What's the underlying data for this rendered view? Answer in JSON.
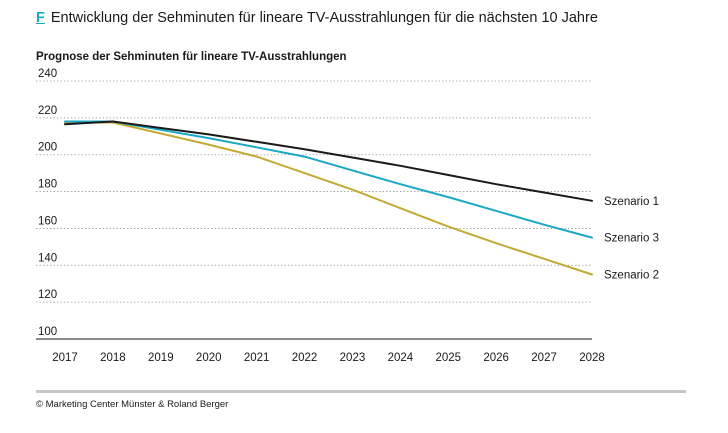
{
  "header": {
    "figure_letter": "F",
    "title": "Entwicklung der Sehminuten für lineare TV-Ausstrahlungen für die nächsten 10 Jahre"
  },
  "footer": {
    "source": "© Marketing Center Münster & Roland Berger"
  },
  "chart_data": {
    "type": "line",
    "title": "Prognose der Sehminuten für lineare TV-Ausstrahlungen",
    "xlabel": "",
    "ylabel": "",
    "x": [
      2017,
      2018,
      2019,
      2020,
      2021,
      2022,
      2023,
      2024,
      2025,
      2026,
      2027,
      2028
    ],
    "x_tick_labels": [
      "2017",
      "2018",
      "2019",
      "2020",
      "2021",
      "2022",
      "2023",
      "2024",
      "2025",
      "2026",
      "2027",
      "2028"
    ],
    "ylim": [
      100,
      240
    ],
    "y_ticks": [
      100,
      120,
      140,
      160,
      180,
      200,
      220,
      240
    ],
    "y_tick_labels": [
      "100",
      "120",
      "140",
      "160",
      "180",
      "200",
      "220",
      "240"
    ],
    "grid": "horizontal-dotted",
    "series": [
      {
        "name": "Szenario 1",
        "color": "#1a1a1a",
        "values": [
          216.5,
          218,
          214.5,
          211,
          207,
          203,
          198.5,
          194,
          189,
          184,
          179.5,
          175
        ]
      },
      {
        "name": "Szenario 3",
        "color": "#1aa8c4",
        "values": [
          218,
          218,
          213.5,
          209,
          204,
          199,
          191.5,
          184,
          177,
          169.5,
          162,
          155
        ]
      },
      {
        "name": "Szenario 2",
        "color": "#c4a934",
        "values": [
          217.5,
          217.5,
          211.5,
          205.5,
          199,
          190,
          181,
          171,
          161,
          152,
          143.5,
          135
        ]
      }
    ]
  }
}
